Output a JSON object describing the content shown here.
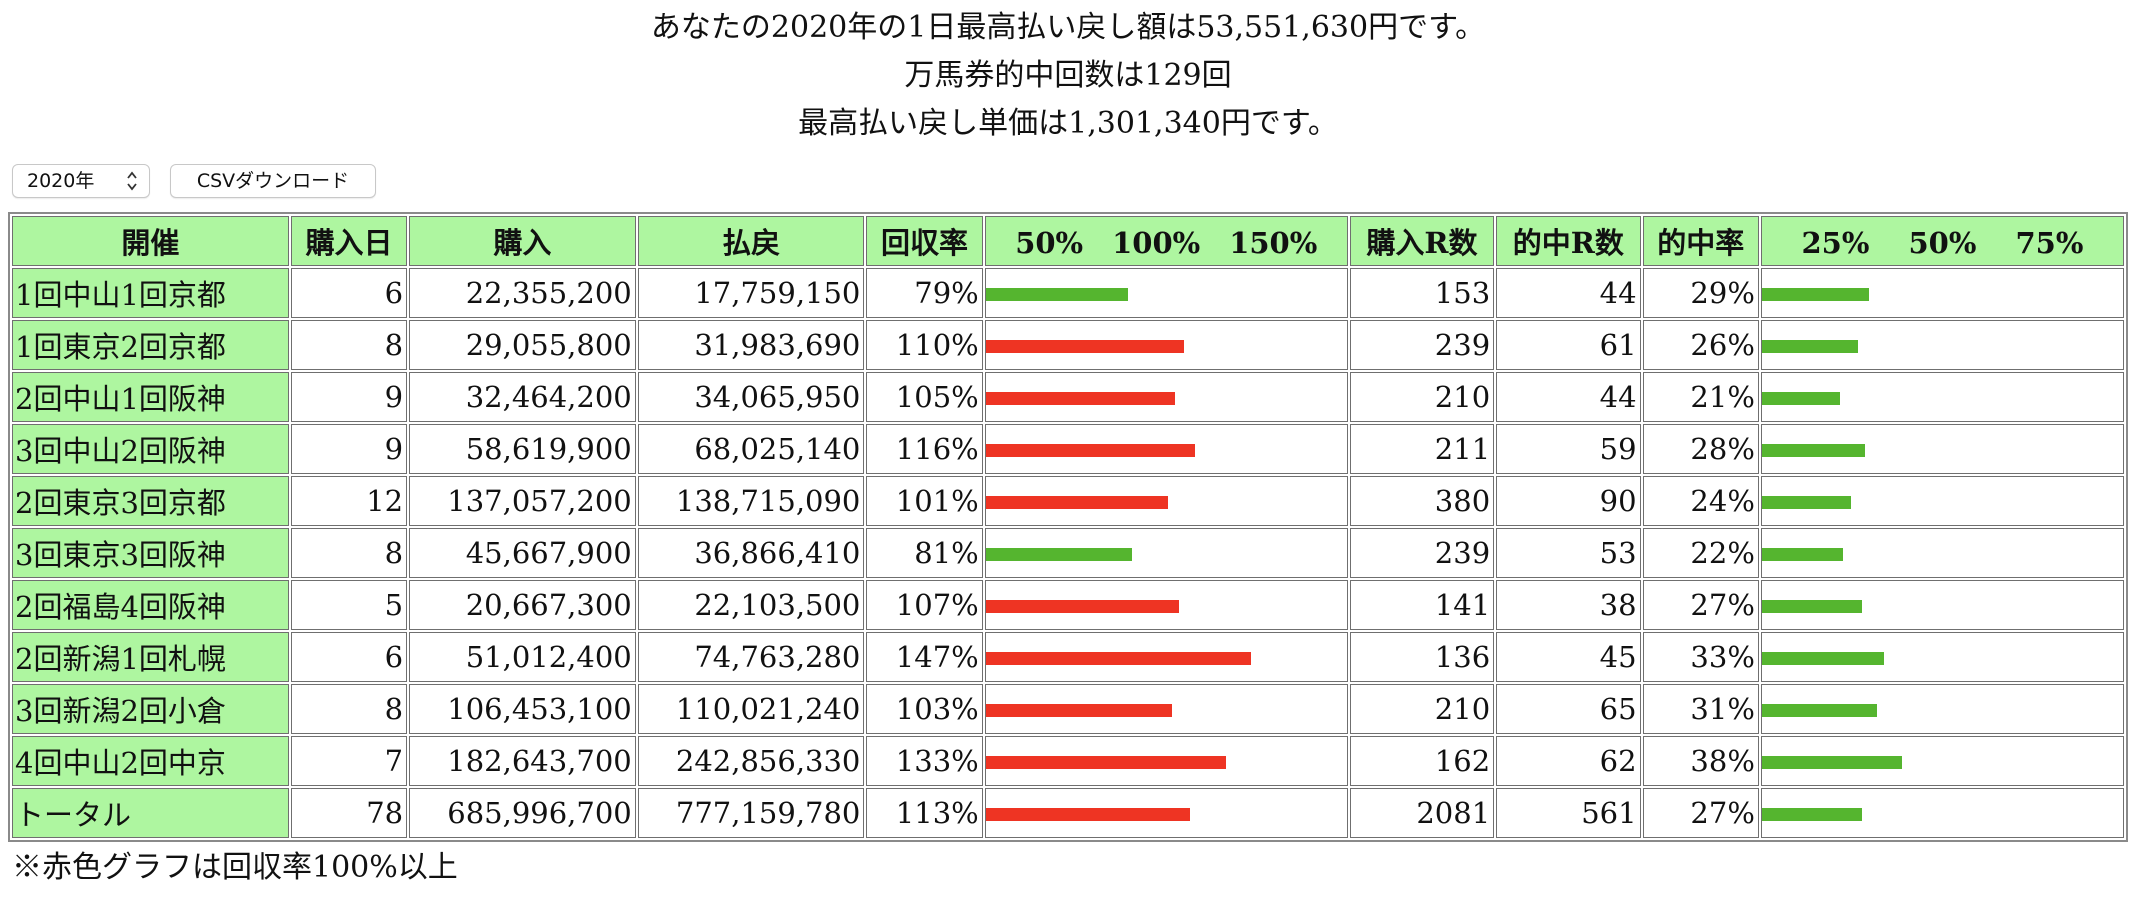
{
  "summary": {
    "line1": "あなたの2020年の1日最高払い戻し額は53,551,630円です。",
    "line2": "万馬券的中回数は129回",
    "line3": "最高払い戻し単価は1,301,340円です。"
  },
  "controls": {
    "year_selected": "2020年",
    "csv_label": "CSVダウンロード"
  },
  "colors": {
    "header_bg": "#aef6a0",
    "bar_green": "#55b52f",
    "bar_red": "#ee3423"
  },
  "table": {
    "headers": {
      "venue": "開催",
      "days": "購入日",
      "purchase": "購入",
      "payout": "払戻",
      "recovery": "回収率",
      "recovery_scale": "50%　100%　150%",
      "races": "購入R数",
      "hit_races": "的中R数",
      "hit_rate": "的中率",
      "hit_scale": "25%　 50%　 75%"
    },
    "rows": [
      {
        "venue": "1回中山1回京都",
        "days": "6",
        "purchase": "22,355,200",
        "payout": "17,759,150",
        "recovery": "79%",
        "recovery_value": 79,
        "races": "153",
        "hit_races": "44",
        "hit_rate": "29%",
        "hit_value": 29
      },
      {
        "venue": "1回東京2回京都",
        "days": "8",
        "purchase": "29,055,800",
        "payout": "31,983,690",
        "recovery": "110%",
        "recovery_value": 110,
        "races": "239",
        "hit_races": "61",
        "hit_rate": "26%",
        "hit_value": 26
      },
      {
        "venue": "2回中山1回阪神",
        "days": "9",
        "purchase": "32,464,200",
        "payout": "34,065,950",
        "recovery": "105%",
        "recovery_value": 105,
        "races": "210",
        "hit_races": "44",
        "hit_rate": "21%",
        "hit_value": 21
      },
      {
        "venue": "3回中山2回阪神",
        "days": "9",
        "purchase": "58,619,900",
        "payout": "68,025,140",
        "recovery": "116%",
        "recovery_value": 116,
        "races": "211",
        "hit_races": "59",
        "hit_rate": "28%",
        "hit_value": 28
      },
      {
        "venue": "2回東京3回京都",
        "days": "12",
        "purchase": "137,057,200",
        "payout": "138,715,090",
        "recovery": "101%",
        "recovery_value": 101,
        "races": "380",
        "hit_races": "90",
        "hit_rate": "24%",
        "hit_value": 24
      },
      {
        "venue": "3回東京3回阪神",
        "days": "8",
        "purchase": "45,667,900",
        "payout": "36,866,410",
        "recovery": "81%",
        "recovery_value": 81,
        "races": "239",
        "hit_races": "53",
        "hit_rate": "22%",
        "hit_value": 22
      },
      {
        "venue": "2回福島4回阪神",
        "days": "5",
        "purchase": "20,667,300",
        "payout": "22,103,500",
        "recovery": "107%",
        "recovery_value": 107,
        "races": "141",
        "hit_races": "38",
        "hit_rate": "27%",
        "hit_value": 27
      },
      {
        "venue": "2回新潟1回札幌",
        "days": "6",
        "purchase": "51,012,400",
        "payout": "74,763,280",
        "recovery": "147%",
        "recovery_value": 147,
        "races": "136",
        "hit_races": "45",
        "hit_rate": "33%",
        "hit_value": 33
      },
      {
        "venue": "3回新潟2回小倉",
        "days": "8",
        "purchase": "106,453,100",
        "payout": "110,021,240",
        "recovery": "103%",
        "recovery_value": 103,
        "races": "210",
        "hit_races": "65",
        "hit_rate": "31%",
        "hit_value": 31
      },
      {
        "venue": "4回中山2回中京",
        "days": "7",
        "purchase": "182,643,700",
        "payout": "242,856,330",
        "recovery": "133%",
        "recovery_value": 133,
        "races": "162",
        "hit_races": "62",
        "hit_rate": "38%",
        "hit_value": 38
      },
      {
        "venue": "トータル",
        "days": "78",
        "purchase": "685,996,700",
        "payout": "777,159,780",
        "recovery": "113%",
        "recovery_value": 113,
        "races": "2081",
        "hit_races": "561",
        "hit_rate": "27%",
        "hit_value": 27
      }
    ]
  },
  "footnote": "※赤色グラフは回収率100%以上"
}
